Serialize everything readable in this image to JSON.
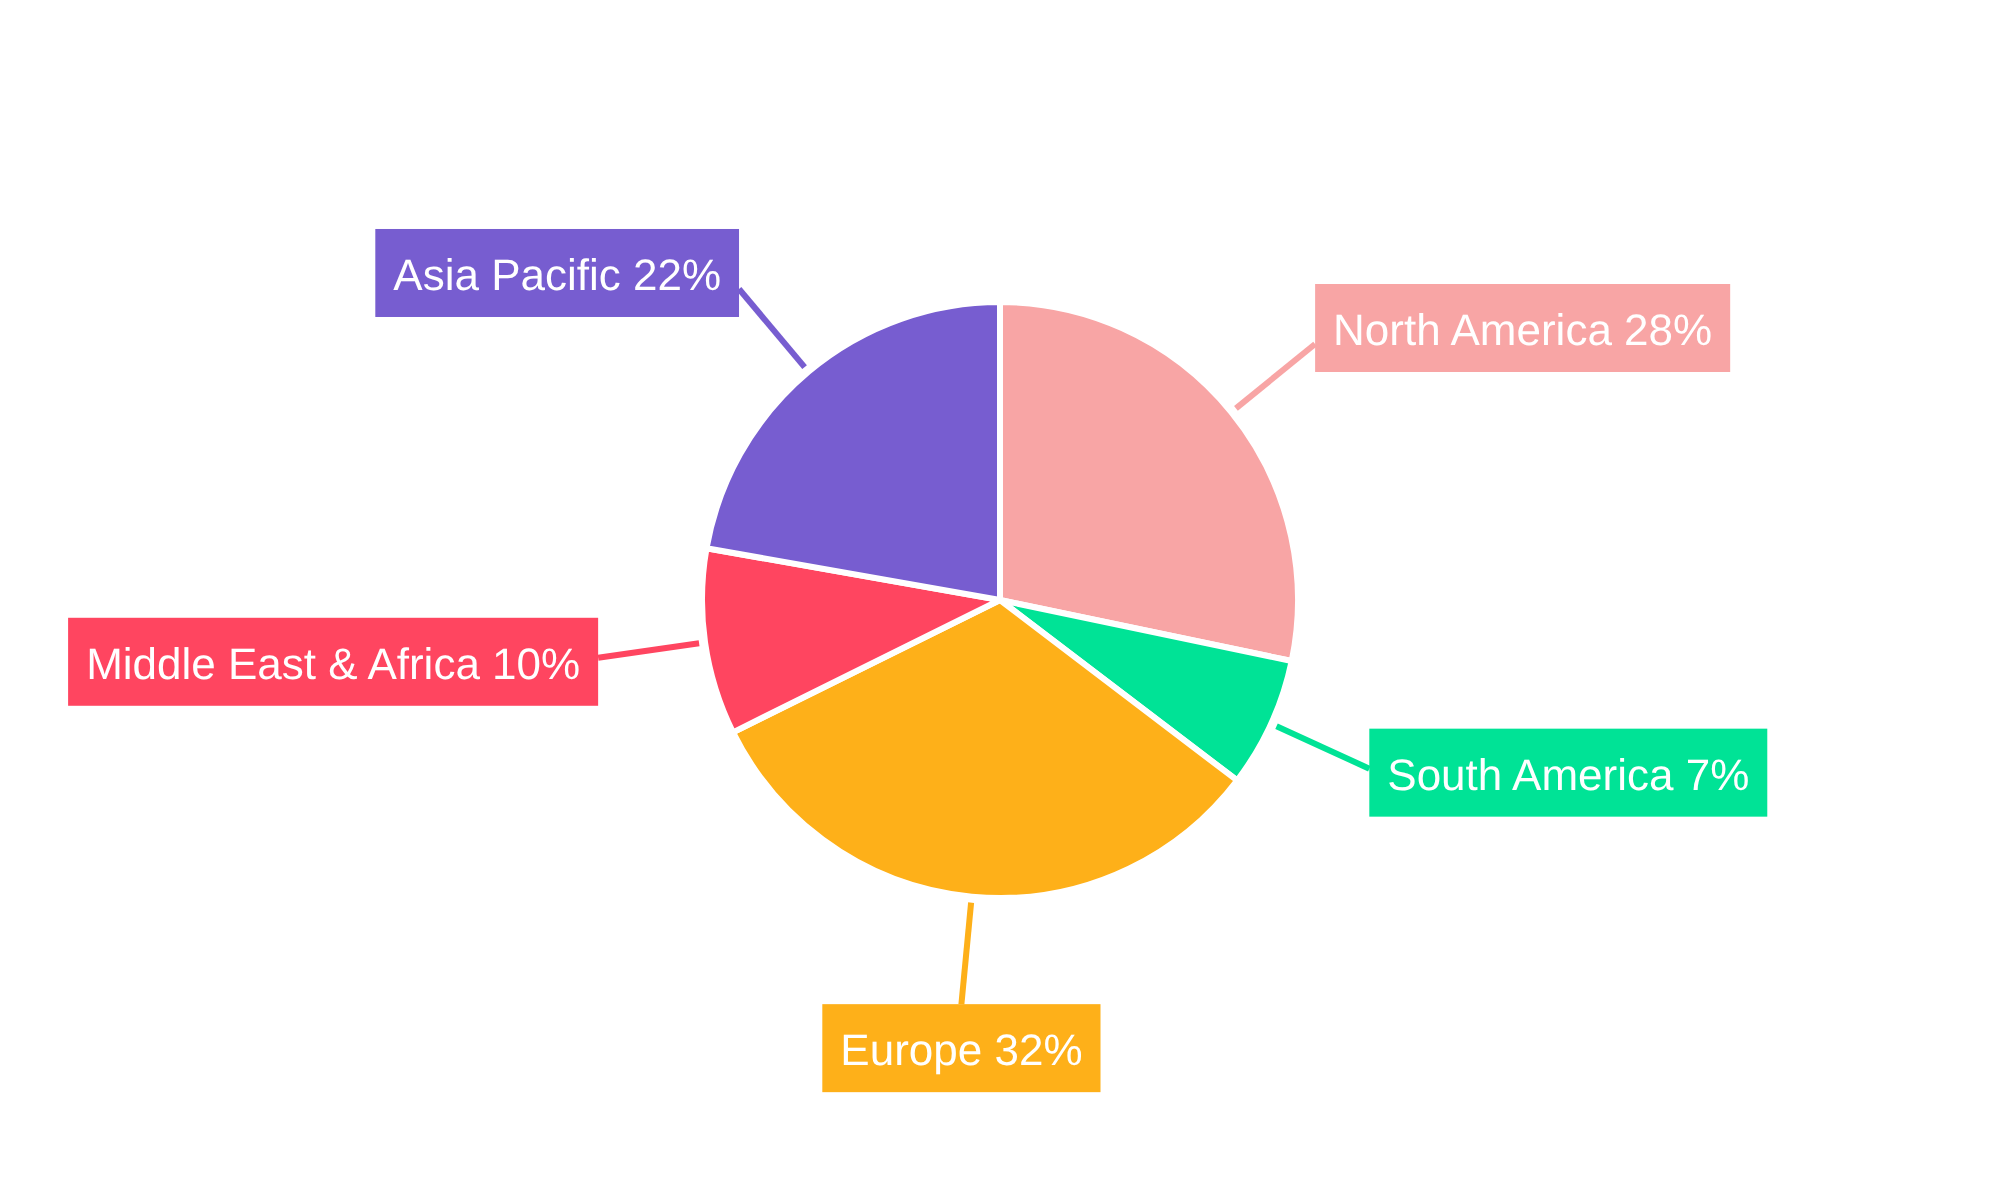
{
  "chart_data": {
    "type": "pie",
    "categories": [
      "North America",
      "South America",
      "Europe",
      "Middle East & Africa",
      "Asia Pacific"
    ],
    "values": [
      28,
      7,
      32,
      10,
      22
    ],
    "value_labels": [
      "28%",
      "7%",
      "32%",
      "10%",
      "22%"
    ],
    "colors": [
      "#f8a5a5",
      "#00e396",
      "#feb019",
      "#ff4560",
      "#775dd0"
    ]
  }
}
